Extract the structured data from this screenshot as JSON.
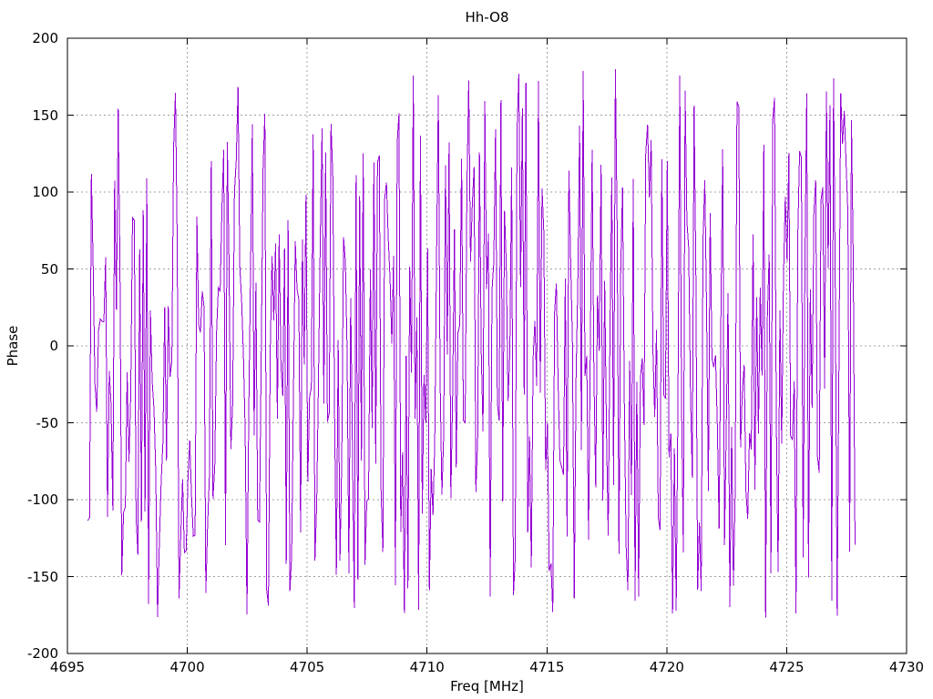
{
  "window": {
    "background": "#ffffff"
  },
  "chart_data": {
    "type": "line",
    "title": "Hh-O8",
    "xlabel": "Freq [MHz]",
    "ylabel": "Phase",
    "xlim": [
      4695,
      4730
    ],
    "ylim": [
      -200,
      200
    ],
    "x_ticks": [
      4695,
      4700,
      4705,
      4710,
      4715,
      4720,
      4725,
      4730
    ],
    "y_ticks": [
      -200,
      -150,
      -100,
      -50,
      0,
      50,
      100,
      150,
      200
    ],
    "grid": true,
    "grid_style": "dashed",
    "legend": "none",
    "colors": {
      "line": "#9400D3",
      "grid": "#a0a0a0",
      "border": "#000000",
      "background": "#ffffff",
      "text": "#000000"
    },
    "series": [
      {
        "name": "Hh-O8",
        "color": "#9400D3",
        "x_start": 4695.85,
        "x_end": 4727.85,
        "n_points": 430,
        "y_distribution": "uniform",
        "y_range": [
          -180,
          180
        ],
        "prng": "mulberry32",
        "seed": 1337,
        "description": "Wrapped interferometric phase noise; consecutive samples jump randomly across the full -180 to +180 degree range, rendering as dense near-vertical purple strokes"
      }
    ]
  }
}
